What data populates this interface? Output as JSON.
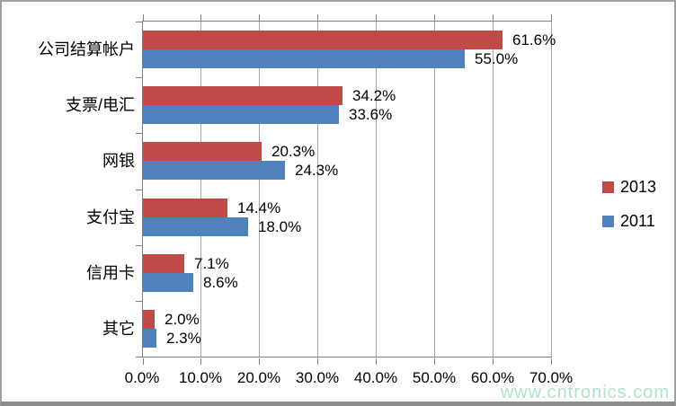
{
  "chart_data": {
    "type": "bar",
    "orientation": "horizontal",
    "title": "",
    "categories": [
      "公司结算帐户",
      "支票/电汇",
      "网银",
      "支付宝",
      "信用卡",
      "其它"
    ],
    "series": [
      {
        "name": "2013",
        "color": "#be4b48",
        "values": [
          61.6,
          34.2,
          20.3,
          14.4,
          7.1,
          2.0
        ]
      },
      {
        "name": "2011",
        "color": "#4f81bd",
        "values": [
          55.0,
          33.6,
          24.3,
          18.0,
          8.6,
          2.3
        ]
      }
    ],
    "value_label_suffix": "%",
    "xlim": [
      0,
      70
    ],
    "x_tick_labels": [
      "0.0%",
      "10.0%",
      "20.0%",
      "30.0%",
      "40.0%",
      "50.0%",
      "60.0%",
      "70.0%"
    ],
    "grid": true,
    "legend_position": "right",
    "colors": {
      "gridline": "#a6a6a6",
      "axis": "#7f7f7f",
      "text": "#000000"
    }
  },
  "watermark": {
    "text": "www.cntronics.com",
    "color": "#b2e4c4"
  }
}
